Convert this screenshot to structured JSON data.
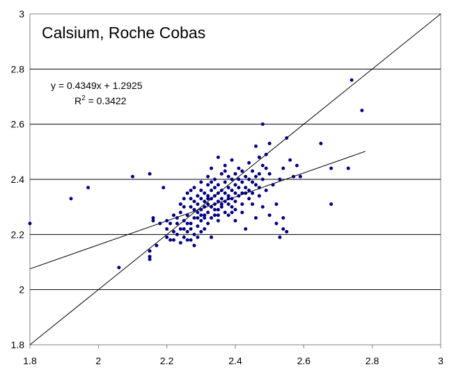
{
  "chart_data": {
    "type": "scatter",
    "title": "Calsium, Roche Cobas",
    "xlabel": "",
    "ylabel": "",
    "xlim": [
      1.8,
      3
    ],
    "ylim": [
      1.8,
      3
    ],
    "x_ticks": [
      "1.8",
      "2",
      "2.2",
      "2.4",
      "2.6",
      "2.8",
      "3"
    ],
    "y_ticks": [
      "1.8",
      "2",
      "2.2",
      "2.4",
      "2.6",
      "2.8",
      "3"
    ],
    "grid": "horizontal",
    "legend": "none",
    "point_color": "#000080",
    "trendline": {
      "equation": "y = 0.4349x + 1.2925",
      "r2_prefix": "R",
      "r2_sup": "2",
      "r2_value": " = 0.3422",
      "slope": 0.4349,
      "intercept": 1.2925,
      "x_range": [
        1.8,
        2.78
      ]
    },
    "identity_line": {
      "x_range": [
        1.8,
        3
      ]
    },
    "series": [
      {
        "points": [
          [
            1.8,
            2.24
          ],
          [
            1.92,
            2.33
          ],
          [
            1.97,
            2.37
          ],
          [
            2.06,
            2.08
          ],
          [
            2.1,
            2.41
          ],
          [
            2.15,
            2.42
          ],
          [
            2.15,
            2.14
          ],
          [
            2.15,
            2.12
          ],
          [
            2.15,
            2.11
          ],
          [
            2.16,
            2.26
          ],
          [
            2.16,
            2.25
          ],
          [
            2.17,
            2.16
          ],
          [
            2.19,
            2.37
          ],
          [
            2.18,
            2.24
          ],
          [
            2.2,
            2.19
          ],
          [
            2.2,
            2.25
          ],
          [
            2.21,
            2.18
          ],
          [
            2.21,
            2.24
          ],
          [
            2.22,
            2.21
          ],
          [
            2.22,
            2.18
          ],
          [
            2.23,
            2.26
          ],
          [
            2.23,
            2.2
          ],
          [
            2.24,
            2.17
          ],
          [
            2.24,
            2.22
          ],
          [
            2.24,
            2.28
          ],
          [
            2.25,
            2.19
          ],
          [
            2.25,
            2.25
          ],
          [
            2.25,
            2.3
          ],
          [
            2.25,
            2.33
          ],
          [
            2.26,
            2.21
          ],
          [
            2.26,
            2.27
          ],
          [
            2.26,
            2.35
          ],
          [
            2.27,
            2.18
          ],
          [
            2.27,
            2.22
          ],
          [
            2.27,
            2.24
          ],
          [
            2.27,
            2.3
          ],
          [
            2.27,
            2.36
          ],
          [
            2.28,
            2.16
          ],
          [
            2.28,
            2.2
          ],
          [
            2.28,
            2.26
          ],
          [
            2.28,
            2.32
          ],
          [
            2.28,
            2.37
          ],
          [
            2.29,
            2.23
          ],
          [
            2.29,
            2.28
          ],
          [
            2.29,
            2.31
          ],
          [
            2.29,
            2.34
          ],
          [
            2.3,
            2.21
          ],
          [
            2.3,
            2.25
          ],
          [
            2.3,
            2.29
          ],
          [
            2.3,
            2.33
          ],
          [
            2.3,
            2.36
          ],
          [
            2.3,
            2.39
          ],
          [
            2.31,
            2.22
          ],
          [
            2.31,
            2.27
          ],
          [
            2.31,
            2.3
          ],
          [
            2.31,
            2.32
          ],
          [
            2.31,
            2.35
          ],
          [
            2.32,
            2.24
          ],
          [
            2.32,
            2.28
          ],
          [
            2.32,
            2.31
          ],
          [
            2.32,
            2.34
          ],
          [
            2.32,
            2.38
          ],
          [
            2.32,
            2.41
          ],
          [
            2.33,
            2.19
          ],
          [
            2.33,
            2.26
          ],
          [
            2.33,
            2.3
          ],
          [
            2.33,
            2.33
          ],
          [
            2.33,
            2.36
          ],
          [
            2.33,
            2.44
          ],
          [
            2.34,
            2.27
          ],
          [
            2.34,
            2.31
          ],
          [
            2.34,
            2.34
          ],
          [
            2.34,
            2.37
          ],
          [
            2.34,
            2.4
          ],
          [
            2.35,
            2.25
          ],
          [
            2.35,
            2.29
          ],
          [
            2.35,
            2.32
          ],
          [
            2.35,
            2.35
          ],
          [
            2.35,
            2.38
          ],
          [
            2.35,
            2.48
          ],
          [
            2.36,
            2.3
          ],
          [
            2.36,
            2.33
          ],
          [
            2.36,
            2.36
          ],
          [
            2.36,
            2.42
          ],
          [
            2.37,
            2.28
          ],
          [
            2.37,
            2.32
          ],
          [
            2.37,
            2.35
          ],
          [
            2.37,
            2.39
          ],
          [
            2.37,
            2.45
          ],
          [
            2.38,
            2.27
          ],
          [
            2.38,
            2.31
          ],
          [
            2.38,
            2.34
          ],
          [
            2.38,
            2.37
          ],
          [
            2.38,
            2.41
          ],
          [
            2.39,
            2.3
          ],
          [
            2.39,
            2.33
          ],
          [
            2.39,
            2.36
          ],
          [
            2.39,
            2.4
          ],
          [
            2.39,
            2.47
          ],
          [
            2.4,
            2.25
          ],
          [
            2.4,
            2.32
          ],
          [
            2.4,
            2.35
          ],
          [
            2.4,
            2.38
          ],
          [
            2.4,
            2.42
          ],
          [
            2.41,
            2.34
          ],
          [
            2.41,
            2.37
          ],
          [
            2.41,
            2.4
          ],
          [
            2.41,
            2.44
          ],
          [
            2.42,
            2.28
          ],
          [
            2.42,
            2.35
          ],
          [
            2.42,
            2.39
          ],
          [
            2.42,
            2.43
          ],
          [
            2.43,
            2.22
          ],
          [
            2.43,
            2.37
          ],
          [
            2.43,
            2.41
          ],
          [
            2.44,
            2.33
          ],
          [
            2.44,
            2.36
          ],
          [
            2.44,
            2.4
          ],
          [
            2.44,
            2.46
          ],
          [
            2.45,
            2.35
          ],
          [
            2.45,
            2.39
          ],
          [
            2.45,
            2.43
          ],
          [
            2.46,
            2.26
          ],
          [
            2.46,
            2.38
          ],
          [
            2.46,
            2.41
          ],
          [
            2.46,
            2.52
          ],
          [
            2.47,
            2.37
          ],
          [
            2.47,
            2.42
          ],
          [
            2.47,
            2.48
          ],
          [
            2.48,
            2.3
          ],
          [
            2.48,
            2.4
          ],
          [
            2.48,
            2.45
          ],
          [
            2.48,
            2.6
          ],
          [
            2.49,
            2.36
          ],
          [
            2.49,
            2.44
          ],
          [
            2.49,
            2.49
          ],
          [
            2.5,
            2.27
          ],
          [
            2.5,
            2.42
          ],
          [
            2.5,
            2.53
          ],
          [
            2.51,
            2.38
          ],
          [
            2.52,
            2.24
          ],
          [
            2.52,
            2.31
          ],
          [
            2.53,
            2.4
          ],
          [
            2.53,
            2.19
          ],
          [
            2.54,
            2.22
          ],
          [
            2.54,
            2.26
          ],
          [
            2.54,
            2.44
          ],
          [
            2.55,
            2.55
          ],
          [
            2.55,
            2.21
          ],
          [
            2.56,
            2.47
          ],
          [
            2.57,
            2.41
          ],
          [
            2.58,
            2.45
          ],
          [
            2.59,
            2.41
          ],
          [
            2.65,
            2.53
          ],
          [
            2.68,
            2.44
          ],
          [
            2.68,
            2.31
          ],
          [
            2.73,
            2.44
          ],
          [
            2.74,
            2.76
          ],
          [
            2.77,
            2.65
          ],
          [
            2.26,
            2.24
          ],
          [
            2.28,
            2.29
          ],
          [
            2.3,
            2.27
          ],
          [
            2.32,
            2.33
          ],
          [
            2.34,
            2.29
          ],
          [
            2.36,
            2.31
          ],
          [
            2.38,
            2.33
          ],
          [
            2.29,
            2.19
          ],
          [
            2.24,
            2.31
          ],
          [
            2.22,
            2.27
          ],
          [
            2.2,
            2.22
          ],
          [
            2.26,
            2.18
          ],
          [
            2.31,
            2.26
          ],
          [
            2.35,
            2.27
          ],
          [
            2.39,
            2.28
          ],
          [
            2.43,
            2.35
          ],
          [
            2.45,
            2.31
          ],
          [
            2.47,
            2.34
          ],
          [
            2.33,
            2.39
          ],
          [
            2.37,
            2.43
          ],
          [
            2.4,
            2.29
          ],
          [
            2.42,
            2.31
          ],
          [
            2.27,
            2.33
          ],
          [
            2.25,
            2.22
          ],
          [
            2.23,
            2.24
          ],
          [
            2.29,
            2.26
          ]
        ]
      }
    ]
  }
}
